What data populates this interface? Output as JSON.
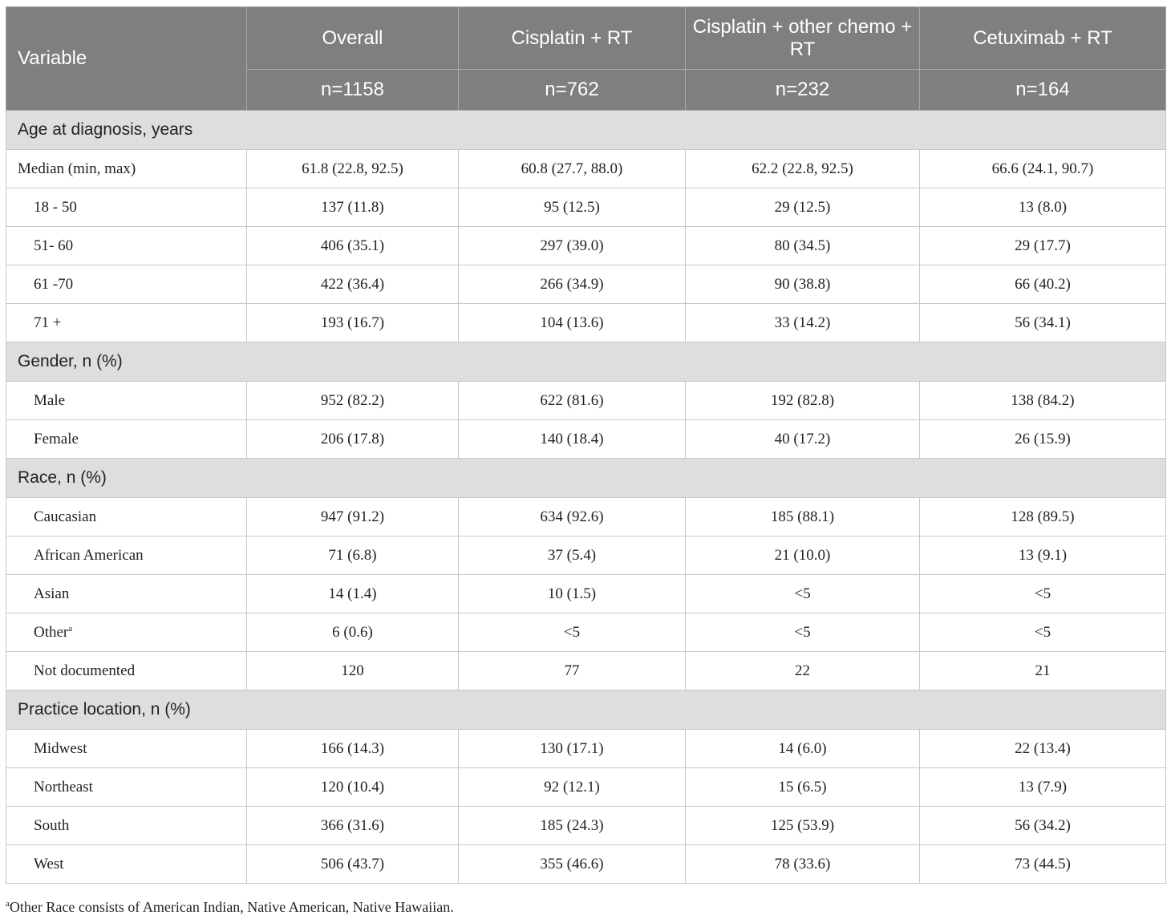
{
  "header": {
    "variable": "Variable",
    "columns": [
      {
        "name": "Overall",
        "n": "n=1158"
      },
      {
        "name": "Cisplatin + RT",
        "n": "n=762"
      },
      {
        "name": "Cisplatin + other chemo + RT",
        "n": "n=232"
      },
      {
        "name": "Cetuximab + RT",
        "n": "n=164"
      }
    ]
  },
  "sections": [
    {
      "title": "Age at diagnosis, years",
      "rows": [
        {
          "label": "Median (min, max)",
          "values": [
            "61.8 (22.8, 92.5)",
            "60.8 (27.7, 88.0)",
            "62.2 (22.8, 92.5)",
            "66.6 (24.1, 90.7)"
          ]
        },
        {
          "label": "18 - 50",
          "values": [
            "137 (11.8)",
            "95 (12.5)",
            "29 (12.5)",
            "13 (8.0)"
          ]
        },
        {
          "label": "51- 60",
          "values": [
            "406 (35.1)",
            "297 (39.0)",
            "80 (34.5)",
            "29 (17.7)"
          ]
        },
        {
          "label": "61 -70",
          "values": [
            "422 (36.4)",
            "266 (34.9)",
            "90 (38.8)",
            "66 (40.2)"
          ]
        },
        {
          "label": "71 +",
          "values": [
            "193 (16.7)",
            "104 (13.6)",
            "33 (14.2)",
            "56 (34.1)"
          ]
        }
      ]
    },
    {
      "title": "Gender, n (%)",
      "rows": [
        {
          "label": "Male",
          "values": [
            "952 (82.2)",
            "622 (81.6)",
            "192 (82.8)",
            "138 (84.2)"
          ]
        },
        {
          "label": "Female",
          "values": [
            "206 (17.8)",
            "140 (18.4)",
            "40 (17.2)",
            "26 (15.9)"
          ]
        }
      ]
    },
    {
      "title": "Race, n (%)",
      "rows": [
        {
          "label": "Caucasian",
          "values": [
            "947 (91.2)",
            "634 (92.6)",
            "185 (88.1)",
            "128 (89.5)"
          ]
        },
        {
          "label": "African American",
          "values": [
            "71 (6.8)",
            "37 (5.4)",
            "21 (10.0)",
            "13 (9.1)"
          ]
        },
        {
          "label": "Asian",
          "values": [
            "14 (1.4)",
            "10 (1.5)",
            "<5",
            "<5"
          ]
        },
        {
          "label": "Other",
          "sup": "a",
          "values": [
            "6 (0.6)",
            "<5",
            "<5",
            "<5"
          ]
        },
        {
          "label": "Not documented",
          "values": [
            "120",
            "77",
            "22",
            "21"
          ]
        }
      ]
    },
    {
      "title": "Practice location, n (%)",
      "rows": [
        {
          "label": "Midwest",
          "values": [
            "166 (14.3)",
            "130 (17.1)",
            "14 (6.0)",
            "22 (13.4)"
          ]
        },
        {
          "label": "Northeast",
          "values": [
            "120 (10.4)",
            "92 (12.1)",
            "15 (6.5)",
            "13 (7.9)"
          ]
        },
        {
          "label": "South",
          "values": [
            "366 (31.6)",
            "185 (24.3)",
            "125 (53.9)",
            "56 (34.2)"
          ]
        },
        {
          "label": "West",
          "values": [
            "506 (43.7)",
            "355 (46.6)",
            "78 (33.6)",
            "73 (44.5)"
          ]
        }
      ]
    }
  ],
  "footnote": {
    "marker": "a",
    "text": "Other Race consists of American Indian, Native American, Native Hawaiian."
  }
}
